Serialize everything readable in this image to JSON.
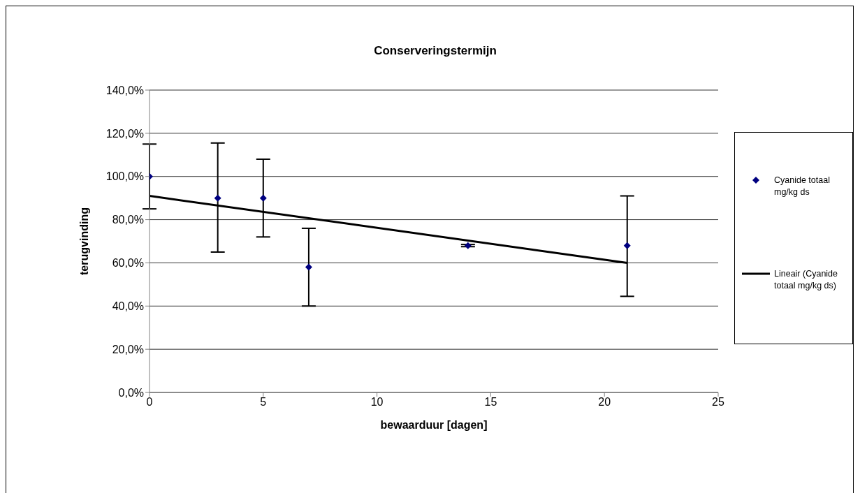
{
  "chart_data": {
    "type": "scatter",
    "title": "Conserveringstermijn",
    "xlabel": "bewaarduur [dagen]",
    "ylabel": "terugvinding",
    "xlim": [
      0,
      25
    ],
    "xticks": [
      0,
      5,
      10,
      15,
      20,
      25
    ],
    "ylim": [
      0,
      140
    ],
    "yticks": [
      {
        "value": 0,
        "label": "0,0%"
      },
      {
        "value": 20,
        "label": "20,0%"
      },
      {
        "value": 40,
        "label": "40,0%"
      },
      {
        "value": 60,
        "label": "60,0%"
      },
      {
        "value": 80,
        "label": "80,0%"
      },
      {
        "value": 100,
        "label": "100,0%"
      },
      {
        "value": 120,
        "label": "120,0%"
      },
      {
        "value": 140,
        "label": "140,0%"
      }
    ],
    "grid": "y",
    "legend": "right",
    "series": [
      {
        "name": "Cyanide totaal mg/kg ds",
        "color": "#000080",
        "marker": "diamond",
        "x": [
          0,
          3,
          5,
          7,
          14,
          21
        ],
        "values": [
          100,
          90,
          90,
          58,
          68,
          68
        ],
        "errors": [
          [
            85,
            115
          ],
          [
            65,
            115.5
          ],
          [
            72,
            108
          ],
          [
            40,
            76
          ],
          [
            67.5,
            68.5
          ],
          [
            44.5,
            91
          ]
        ]
      },
      {
        "name": "Lineair (Cyanide totaal mg/kg ds)",
        "type": "line",
        "color": "#000000",
        "marker": "none",
        "line_style": "solid",
        "x": [
          0,
          21
        ],
        "values": [
          91,
          60
        ]
      }
    ]
  }
}
